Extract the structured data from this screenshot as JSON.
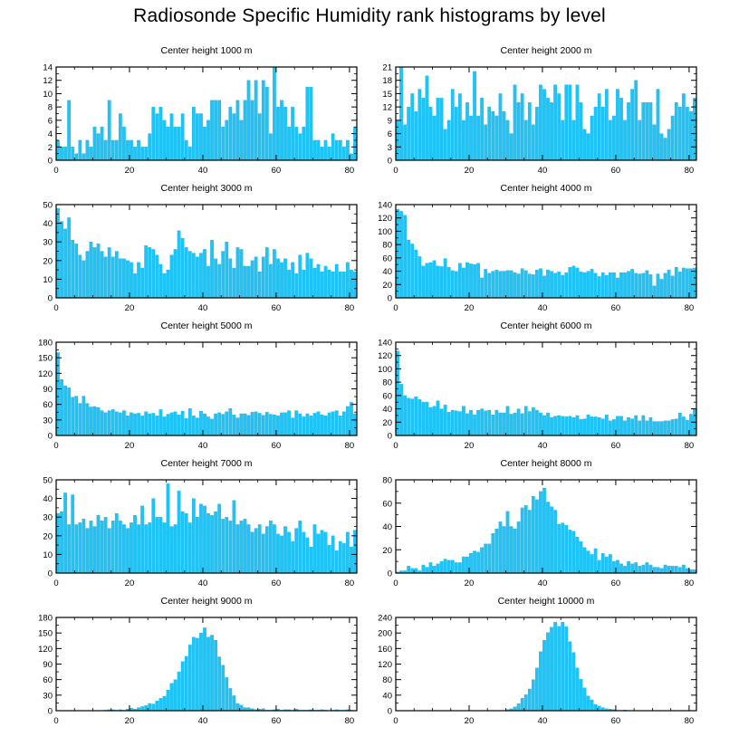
{
  "title": "Radiosonde Specific Humidity rank histograms by level",
  "colors": {
    "bar": "#1ec4f5",
    "bar_edge": "#1aa9dc",
    "axis": "#000000"
  },
  "chart_data": [
    {
      "type": "bar",
      "title": "Center height 1000 m",
      "xlim": [
        0,
        82
      ],
      "ylim": [
        0,
        14
      ],
      "xticks": [
        0,
        20,
        40,
        60,
        80
      ],
      "yticks": [
        0,
        2,
        4,
        6,
        8,
        10,
        12,
        14
      ],
      "values": [
        3,
        2,
        2,
        9,
        2,
        1,
        3,
        1,
        3,
        2,
        5,
        4,
        5,
        3,
        9,
        3,
        3,
        7,
        5,
        3,
        3,
        2,
        3,
        2,
        2,
        4,
        8,
        7,
        8,
        6,
        5,
        7,
        5,
        5,
        7,
        3,
        2,
        8,
        7,
        7,
        5,
        6,
        9,
        9,
        9,
        5,
        6,
        8,
        7,
        9,
        6,
        9,
        12,
        9,
        12,
        7,
        12,
        11,
        4,
        14,
        8,
        9,
        8,
        5,
        8,
        5,
        4,
        5,
        11,
        11,
        3,
        3,
        2,
        3,
        2,
        4,
        3,
        3,
        2,
        3,
        1,
        5
      ]
    },
    {
      "type": "bar",
      "title": "Center height 2000 m",
      "xlim": [
        0,
        82
      ],
      "ylim": [
        0,
        21
      ],
      "xticks": [
        0,
        20,
        40,
        60,
        80
      ],
      "yticks": [
        0,
        3,
        6,
        9,
        12,
        15,
        18,
        21
      ],
      "values": [
        9,
        21,
        8,
        12,
        15,
        11,
        16,
        14,
        19,
        12,
        10,
        14,
        14,
        7,
        9,
        16,
        12,
        15,
        9,
        13,
        10,
        20,
        10,
        14,
        8,
        12,
        11,
        10,
        15,
        11,
        9,
        6,
        17,
        13,
        15,
        9,
        13,
        8,
        12,
        17,
        16,
        14,
        13,
        17,
        15,
        9,
        17,
        17,
        9,
        17,
        13,
        7,
        6,
        10,
        12,
        15,
        12,
        16,
        9,
        10,
        16,
        14,
        9,
        13,
        16,
        18,
        9,
        13,
        13,
        13,
        8,
        16,
        6,
        5,
        7,
        10,
        13,
        12,
        15,
        12,
        11,
        14
      ]
    },
    {
      "type": "bar",
      "title": "Center height 3000 m",
      "xlim": [
        0,
        82
      ],
      "ylim": [
        0,
        50
      ],
      "xticks": [
        0,
        20,
        40,
        60,
        80
      ],
      "yticks": [
        0,
        10,
        20,
        30,
        40,
        50
      ],
      "values": [
        48,
        41,
        37,
        43,
        31,
        29,
        23,
        20,
        25,
        30,
        27,
        29,
        25,
        22,
        27,
        22,
        25,
        21,
        21,
        20,
        19,
        13,
        19,
        16,
        28,
        27,
        26,
        23,
        18,
        13,
        15,
        23,
        26,
        36,
        32,
        27,
        25,
        24,
        22,
        24,
        26,
        17,
        31,
        21,
        18,
        25,
        30,
        21,
        16,
        27,
        26,
        17,
        17,
        20,
        22,
        14,
        22,
        27,
        18,
        26,
        21,
        19,
        21,
        15,
        19,
        13,
        23,
        15,
        24,
        21,
        16,
        18,
        14,
        17,
        15,
        14,
        18,
        14,
        14,
        19,
        15,
        14
      ]
    },
    {
      "type": "bar",
      "title": "Center height 4000 m",
      "xlim": [
        0,
        82
      ],
      "ylim": [
        0,
        140
      ],
      "xticks": [
        0,
        20,
        40,
        60,
        80
      ],
      "yticks": [
        0,
        20,
        40,
        60,
        80,
        100,
        120,
        140
      ],
      "values": [
        133,
        130,
        124,
        87,
        81,
        72,
        62,
        48,
        52,
        53,
        56,
        48,
        47,
        59,
        46,
        41,
        40,
        52,
        45,
        53,
        51,
        50,
        52,
        30,
        43,
        37,
        40,
        42,
        40,
        40,
        41,
        41,
        38,
        36,
        44,
        41,
        36,
        35,
        42,
        44,
        33,
        42,
        40,
        37,
        39,
        34,
        38,
        46,
        48,
        45,
        39,
        38,
        40,
        43,
        37,
        32,
        38,
        34,
        38,
        38,
        30,
        38,
        38,
        40,
        43,
        37,
        36,
        37,
        41,
        35,
        18,
        36,
        28,
        37,
        42,
        33,
        46,
        39,
        45,
        44,
        44,
        45
      ]
    },
    {
      "type": "bar",
      "title": "Center height 5000 m",
      "xlim": [
        0,
        82
      ],
      "ylim": [
        0,
        180
      ],
      "xticks": [
        0,
        20,
        40,
        60,
        80
      ],
      "yticks": [
        0,
        30,
        60,
        90,
        120,
        150,
        180
      ],
      "values": [
        160,
        108,
        96,
        92,
        74,
        76,
        62,
        76,
        62,
        55,
        56,
        54,
        48,
        44,
        48,
        50,
        46,
        44,
        48,
        38,
        44,
        42,
        43,
        38,
        46,
        42,
        43,
        38,
        50,
        36,
        41,
        44,
        46,
        40,
        47,
        33,
        52,
        38,
        34,
        47,
        42,
        36,
        32,
        42,
        44,
        41,
        46,
        52,
        40,
        34,
        42,
        42,
        39,
        45,
        46,
        43,
        39,
        45,
        41,
        40,
        38,
        44,
        44,
        48,
        34,
        48,
        42,
        36,
        42,
        38,
        43,
        46,
        40,
        38,
        44,
        46,
        48,
        38,
        46,
        56,
        64,
        42
      ]
    },
    {
      "type": "bar",
      "title": "Center height 6000 m",
      "xlim": [
        0,
        82
      ],
      "ylim": [
        0,
        140
      ],
      "xticks": [
        0,
        20,
        40,
        60,
        80
      ],
      "yticks": [
        0,
        20,
        40,
        60,
        80,
        100,
        120,
        140
      ],
      "values": [
        127,
        77,
        60,
        56,
        55,
        58,
        54,
        50,
        50,
        42,
        44,
        52,
        40,
        46,
        35,
        38,
        37,
        36,
        44,
        33,
        38,
        31,
        38,
        40,
        37,
        38,
        31,
        38,
        34,
        34,
        44,
        32,
        34,
        40,
        33,
        44,
        36,
        42,
        38,
        34,
        30,
        34,
        27,
        29,
        30,
        29,
        28,
        29,
        27,
        30,
        24,
        25,
        31,
        28,
        28,
        27,
        25,
        31,
        22,
        24,
        29,
        29,
        22,
        27,
        25,
        30,
        22,
        30,
        22,
        27,
        21,
        21,
        21,
        22,
        22,
        24,
        25,
        34,
        28,
        23,
        32,
        40
      ]
    },
    {
      "type": "bar",
      "title": "Center height 7000 m",
      "xlim": [
        0,
        82
      ],
      "ylim": [
        0,
        50
      ],
      "xticks": [
        0,
        20,
        40,
        60,
        80
      ],
      "yticks": [
        0,
        10,
        20,
        30,
        40,
        50
      ],
      "values": [
        32,
        33,
        43,
        26,
        42,
        26,
        27,
        29,
        24,
        28,
        25,
        31,
        28,
        30,
        24,
        28,
        32,
        28,
        26,
        24,
        27,
        31,
        26,
        36,
        26,
        27,
        40,
        30,
        30,
        27,
        48,
        25,
        26,
        44,
        33,
        32,
        27,
        40,
        30,
        37,
        36,
        32,
        31,
        33,
        37,
        29,
        30,
        28,
        39,
        26,
        28,
        29,
        26,
        22,
        24,
        26,
        21,
        25,
        28,
        26,
        21,
        20,
        25,
        22,
        17,
        24,
        28,
        22,
        19,
        14,
        26,
        21,
        23,
        22,
        15,
        20,
        12,
        17,
        16,
        22,
        14,
        23
      ]
    },
    {
      "type": "bar",
      "title": "Center height 8000 m",
      "xlim": [
        0,
        82
      ],
      "ylim": [
        0,
        80
      ],
      "xticks": [
        0,
        20,
        40,
        60,
        80
      ],
      "yticks": [
        0,
        20,
        40,
        60,
        80
      ],
      "values": [
        1,
        2,
        2,
        6,
        4,
        4,
        2,
        7,
        5,
        9,
        6,
        8,
        10,
        12,
        11,
        11,
        9,
        9,
        14,
        14,
        17,
        19,
        18,
        22,
        25,
        25,
        34,
        38,
        44,
        40,
        53,
        40,
        38,
        44,
        56,
        58,
        54,
        66,
        63,
        70,
        73,
        61,
        57,
        54,
        42,
        43,
        41,
        37,
        36,
        31,
        27,
        22,
        19,
        16,
        21,
        11,
        17,
        14,
        16,
        10,
        11,
        8,
        6,
        10,
        8,
        9,
        6,
        7,
        9,
        7,
        5,
        5,
        4,
        7,
        6,
        6,
        6,
        5,
        7,
        4,
        3,
        3
      ]
    },
    {
      "type": "bar",
      "title": "Center height 9000 m",
      "xlim": [
        0,
        82
      ],
      "ylim": [
        0,
        180
      ],
      "xticks": [
        0,
        20,
        40,
        60,
        80
      ],
      "yticks": [
        0,
        30,
        60,
        90,
        120,
        150,
        180
      ],
      "values": [
        0,
        0,
        0,
        0,
        0,
        0,
        0,
        0,
        0,
        0,
        0,
        0,
        0,
        1,
        2,
        2,
        1,
        2,
        1,
        3,
        5,
        3,
        6,
        8,
        10,
        14,
        13,
        19,
        24,
        28,
        40,
        53,
        60,
        75,
        95,
        105,
        127,
        142,
        140,
        150,
        160,
        142,
        146,
        136,
        104,
        88,
        64,
        43,
        29,
        14,
        11,
        6,
        6,
        4,
        2,
        3,
        4,
        1,
        1,
        2,
        3,
        1,
        2,
        2,
        1,
        3,
        1,
        1,
        1,
        2,
        1,
        1,
        2,
        1,
        0,
        1,
        2,
        1,
        1,
        2,
        1,
        0
      ]
    },
    {
      "type": "bar",
      "title": "Center height 10000 m",
      "xlim": [
        0,
        82
      ],
      "ylim": [
        0,
        240
      ],
      "xticks": [
        0,
        20,
        40,
        60,
        80
      ],
      "yticks": [
        0,
        40,
        80,
        120,
        160,
        200,
        240
      ],
      "values": [
        0,
        0,
        0,
        0,
        0,
        0,
        0,
        0,
        0,
        0,
        0,
        0,
        0,
        0,
        0,
        0,
        0,
        0,
        0,
        0,
        0,
        0,
        0,
        0,
        0,
        0,
        0,
        0,
        0,
        0,
        3,
        5,
        10,
        18,
        32,
        41,
        56,
        80,
        110,
        152,
        181,
        201,
        215,
        228,
        217,
        228,
        216,
        178,
        150,
        110,
        81,
        59,
        38,
        28,
        16,
        12,
        8,
        5,
        4,
        3,
        1,
        1,
        2,
        1,
        0,
        0,
        0,
        0,
        0,
        0,
        0,
        0,
        0,
        0,
        0,
        0,
        0,
        0,
        0,
        0,
        0,
        0
      ]
    }
  ]
}
